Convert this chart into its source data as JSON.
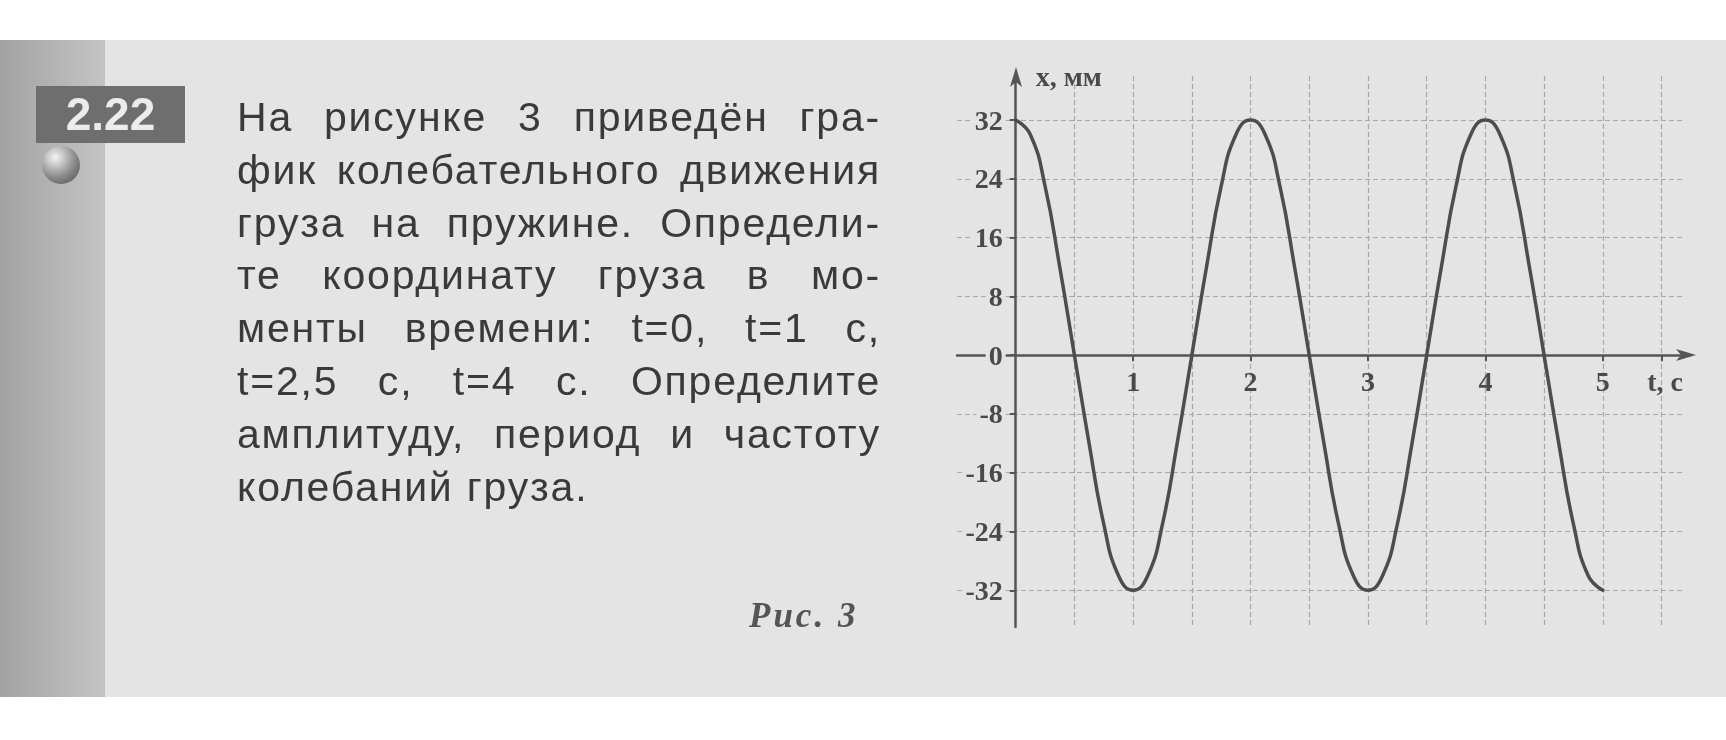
{
  "chart_data": {
    "type": "line",
    "title": "2.22",
    "annotations": [
      "На рисунке 3 приведён гра-\nфик колебательного движения\nгруза на пружине. Определи-\nте координату груза в мо-\nменты времени: t=0, t=1 с,\nt=2,5 с, t=4 с. Определите\nамплитуду, период и частоту\nколебаний груза.",
      "Рис. 3"
    ],
    "xlabel": "t, с",
    "ylabel": "x, мм",
    "x": [
      0,
      0.125,
      0.25,
      0.375,
      0.5,
      0.625,
      0.75,
      0.875,
      1,
      1.125,
      1.25,
      1.375,
      1.5,
      1.625,
      1.75,
      1.875,
      2,
      2.125,
      2.25,
      2.375,
      2.5,
      2.625,
      2.75,
      2.875,
      3,
      3.125,
      3.25,
      3.375,
      3.5,
      3.625,
      3.75,
      3.875,
      4,
      4.125,
      4.25,
      4.375,
      4.5,
      4.625,
      4.75,
      4.875,
      5
    ],
    "values": [
      32,
      30,
      23,
      12,
      0,
      -12,
      -23,
      -30,
      -32,
      -30,
      -23,
      -12,
      0,
      12,
      23,
      30,
      32,
      30,
      23,
      12,
      0,
      -12,
      -23,
      -30,
      -32,
      -30,
      -23,
      -12,
      0,
      12,
      23,
      30,
      32,
      30,
      23,
      12,
      0,
      -12,
      -23,
      -30,
      -32
    ],
    "color": "#4d4d4d",
    "xlim": [
      -0.5,
      5.7
    ],
    "ylim": [
      -37,
      38
    ],
    "xticks": [
      {
        "value": 0.5,
        "label": null
      },
      1,
      {
        "value": 1.5,
        "label": null
      },
      2,
      {
        "value": 2.5,
        "label": null
      },
      3,
      {
        "value": 3.5,
        "label": null
      },
      4,
      {
        "value": 4.5,
        "label": null
      },
      5,
      {
        "value": 5.5,
        "label": null
      }
    ],
    "yticks": [
      -32,
      -24,
      -16,
      -8,
      0,
      8,
      16,
      24,
      32
    ],
    "grid": true,
    "marker": "none"
  }
}
